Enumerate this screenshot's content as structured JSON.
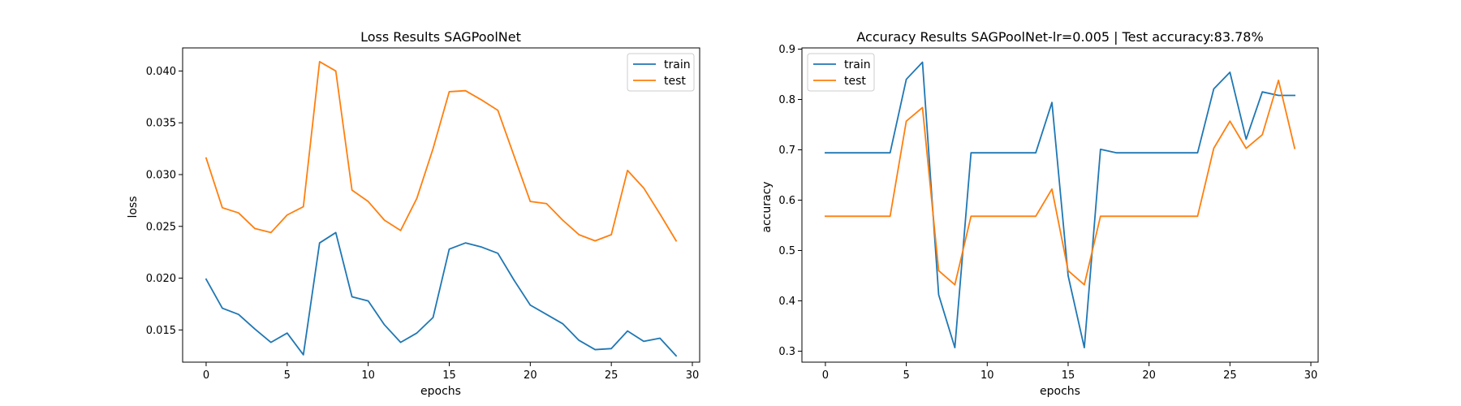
{
  "chart_data": [
    {
      "type": "line",
      "title": "Loss Results SAGPoolNet",
      "xlabel": "epochs",
      "ylabel": "loss",
      "xlim": [
        -1.45,
        30.45
      ],
      "ylim": [
        0.01189,
        0.04223
      ],
      "xticks": [
        0,
        5,
        10,
        15,
        20,
        25,
        30
      ],
      "xtick_labels": [
        "0",
        "5",
        "10",
        "15",
        "20",
        "25",
        "30"
      ],
      "yticks": [
        0.015,
        0.02,
        0.025,
        0.03,
        0.035,
        0.04
      ],
      "ytick_labels": [
        "0.015",
        "0.020",
        "0.025",
        "0.030",
        "0.035",
        "0.040"
      ],
      "legend_position": "upper right",
      "x": [
        0,
        1,
        2,
        3,
        4,
        5,
        6,
        7,
        8,
        9,
        10,
        11,
        12,
        13,
        14,
        15,
        16,
        17,
        18,
        19,
        20,
        21,
        22,
        23,
        24,
        25,
        26,
        27,
        28,
        29
      ],
      "series": [
        {
          "name": "train",
          "color": "#1f77b4",
          "values": [
            0.0199,
            0.0171,
            0.0165,
            0.0151,
            0.0138,
            0.0147,
            0.0126,
            0.0234,
            0.0244,
            0.0182,
            0.0178,
            0.0155,
            0.0138,
            0.0147,
            0.0162,
            0.0228,
            0.0234,
            0.023,
            0.0224,
            0.0198,
            0.0174,
            0.0165,
            0.0156,
            0.014,
            0.0131,
            0.0132,
            0.0149,
            0.0139,
            0.0142,
            0.0125
          ]
        },
        {
          "name": "test",
          "color": "#ff7f0e",
          "values": [
            0.0316,
            0.0268,
            0.0263,
            0.0248,
            0.0244,
            0.0261,
            0.0269,
            0.0409,
            0.04,
            0.0285,
            0.0274,
            0.0256,
            0.0246,
            0.0277,
            0.0325,
            0.038,
            0.0381,
            0.0372,
            0.0362,
            0.0318,
            0.0274,
            0.0272,
            0.0256,
            0.0242,
            0.0236,
            0.0242,
            0.0304,
            0.0287,
            0.0262,
            0.0236
          ]
        }
      ]
    },
    {
      "type": "line",
      "title": "Accuracy Results SAGPoolNet-lr=0.005 | Test accuracy:83.78%",
      "xlabel": "epochs",
      "ylabel": "accuracy",
      "xlim": [
        -1.45,
        30.45
      ],
      "ylim": [
        0.2782,
        0.9024
      ],
      "xticks": [
        0,
        5,
        10,
        15,
        20,
        25,
        30
      ],
      "xtick_labels": [
        "0",
        "5",
        "10",
        "15",
        "20",
        "25",
        "30"
      ],
      "yticks": [
        0.3,
        0.4,
        0.5,
        0.6,
        0.7,
        0.8,
        0.9
      ],
      "ytick_labels": [
        "0.3",
        "0.4",
        "0.5",
        "0.6",
        "0.7",
        "0.8",
        "0.9"
      ],
      "legend_position": "upper left",
      "x": [
        0,
        1,
        2,
        3,
        4,
        5,
        6,
        7,
        8,
        9,
        10,
        11,
        12,
        13,
        14,
        15,
        16,
        17,
        18,
        19,
        20,
        21,
        22,
        23,
        24,
        25,
        26,
        27,
        28,
        29
      ],
      "series": [
        {
          "name": "train",
          "color": "#1f77b4",
          "values": [
            0.694,
            0.694,
            0.694,
            0.694,
            0.694,
            0.84,
            0.874,
            0.412,
            0.307,
            0.694,
            0.694,
            0.694,
            0.694,
            0.694,
            0.794,
            0.45,
            0.307,
            0.701,
            0.694,
            0.694,
            0.694,
            0.694,
            0.694,
            0.694,
            0.821,
            0.854,
            0.721,
            0.815,
            0.808,
            0.808
          ]
        },
        {
          "name": "test",
          "color": "#ff7f0e",
          "values": [
            0.568,
            0.568,
            0.568,
            0.568,
            0.568,
            0.757,
            0.784,
            0.46,
            0.432,
            0.568,
            0.568,
            0.568,
            0.568,
            0.568,
            0.622,
            0.46,
            0.432,
            0.568,
            0.568,
            0.568,
            0.568,
            0.568,
            0.568,
            0.568,
            0.703,
            0.757,
            0.703,
            0.73,
            0.838,
            0.703
          ]
        }
      ]
    }
  ]
}
